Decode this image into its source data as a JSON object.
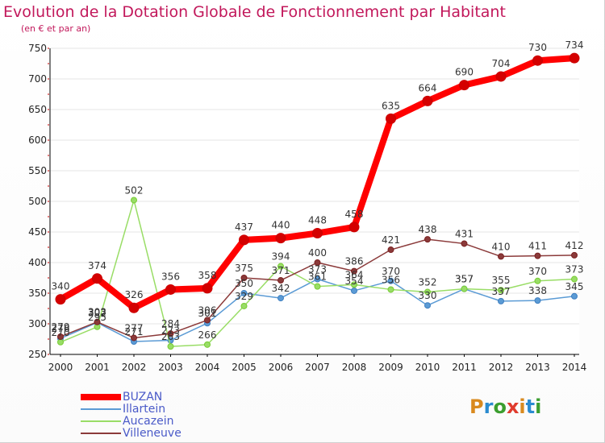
{
  "title": "Evolution de la Dotation Globale de Fonctionnement par Habitant",
  "subtitle": "(en € et par an)",
  "brand": {
    "text": "Proxiti",
    "letter_colors": [
      "#d98a1f",
      "#2a8bd0",
      "#3b9e2f",
      "#e03c2e",
      "#d98a1f",
      "#2a8bd0",
      "#3b9e2f"
    ]
  },
  "chart_data": {
    "type": "line",
    "x": [
      2000,
      2001,
      2002,
      2003,
      2004,
      2005,
      2006,
      2007,
      2008,
      2009,
      2010,
      2011,
      2012,
      2013,
      2014
    ],
    "xlabel": "",
    "ylabel": "",
    "ylim": [
      250,
      750
    ],
    "yticks": [
      250,
      300,
      350,
      400,
      450,
      500,
      550,
      600,
      650,
      700,
      750
    ],
    "grid": "horizontal",
    "legend": "bottom-left",
    "series": [
      {
        "name": "BUZAN",
        "values": [
          340,
          374,
          326,
          356,
          358,
          437,
          440,
          448,
          458,
          635,
          664,
          690,
          704,
          730,
          734
        ],
        "color": "#ff0000",
        "marker": "#cc0000",
        "label_color": "#333333",
        "bold": true
      },
      {
        "name": "Illartein",
        "values": [
          276,
          302,
          271,
          273,
          301,
          350,
          342,
          373,
          354,
          370,
          330,
          357,
          337,
          338,
          345
        ],
        "color": "#5b9bd5",
        "marker": "#3f7fc0",
        "label_color": "#333333",
        "bold": false
      },
      {
        "name": "Aucazein",
        "values": [
          270,
          295,
          502,
          263,
          266,
          329,
          394,
          361,
          364,
          356,
          352,
          357,
          355,
          370,
          373
        ],
        "color": "#99dd66",
        "marker": "#77cc33",
        "label_color": "#333333",
        "bold": false
      },
      {
        "name": "Villeneuve",
        "values": [
          279,
          303,
          277,
          284,
          306,
          375,
          371,
          400,
          386,
          421,
          438,
          431,
          410,
          411,
          412
        ],
        "color": "#8b3a3a",
        "marker": "#7a2020",
        "label_color": "#333333",
        "bold": false
      }
    ]
  }
}
